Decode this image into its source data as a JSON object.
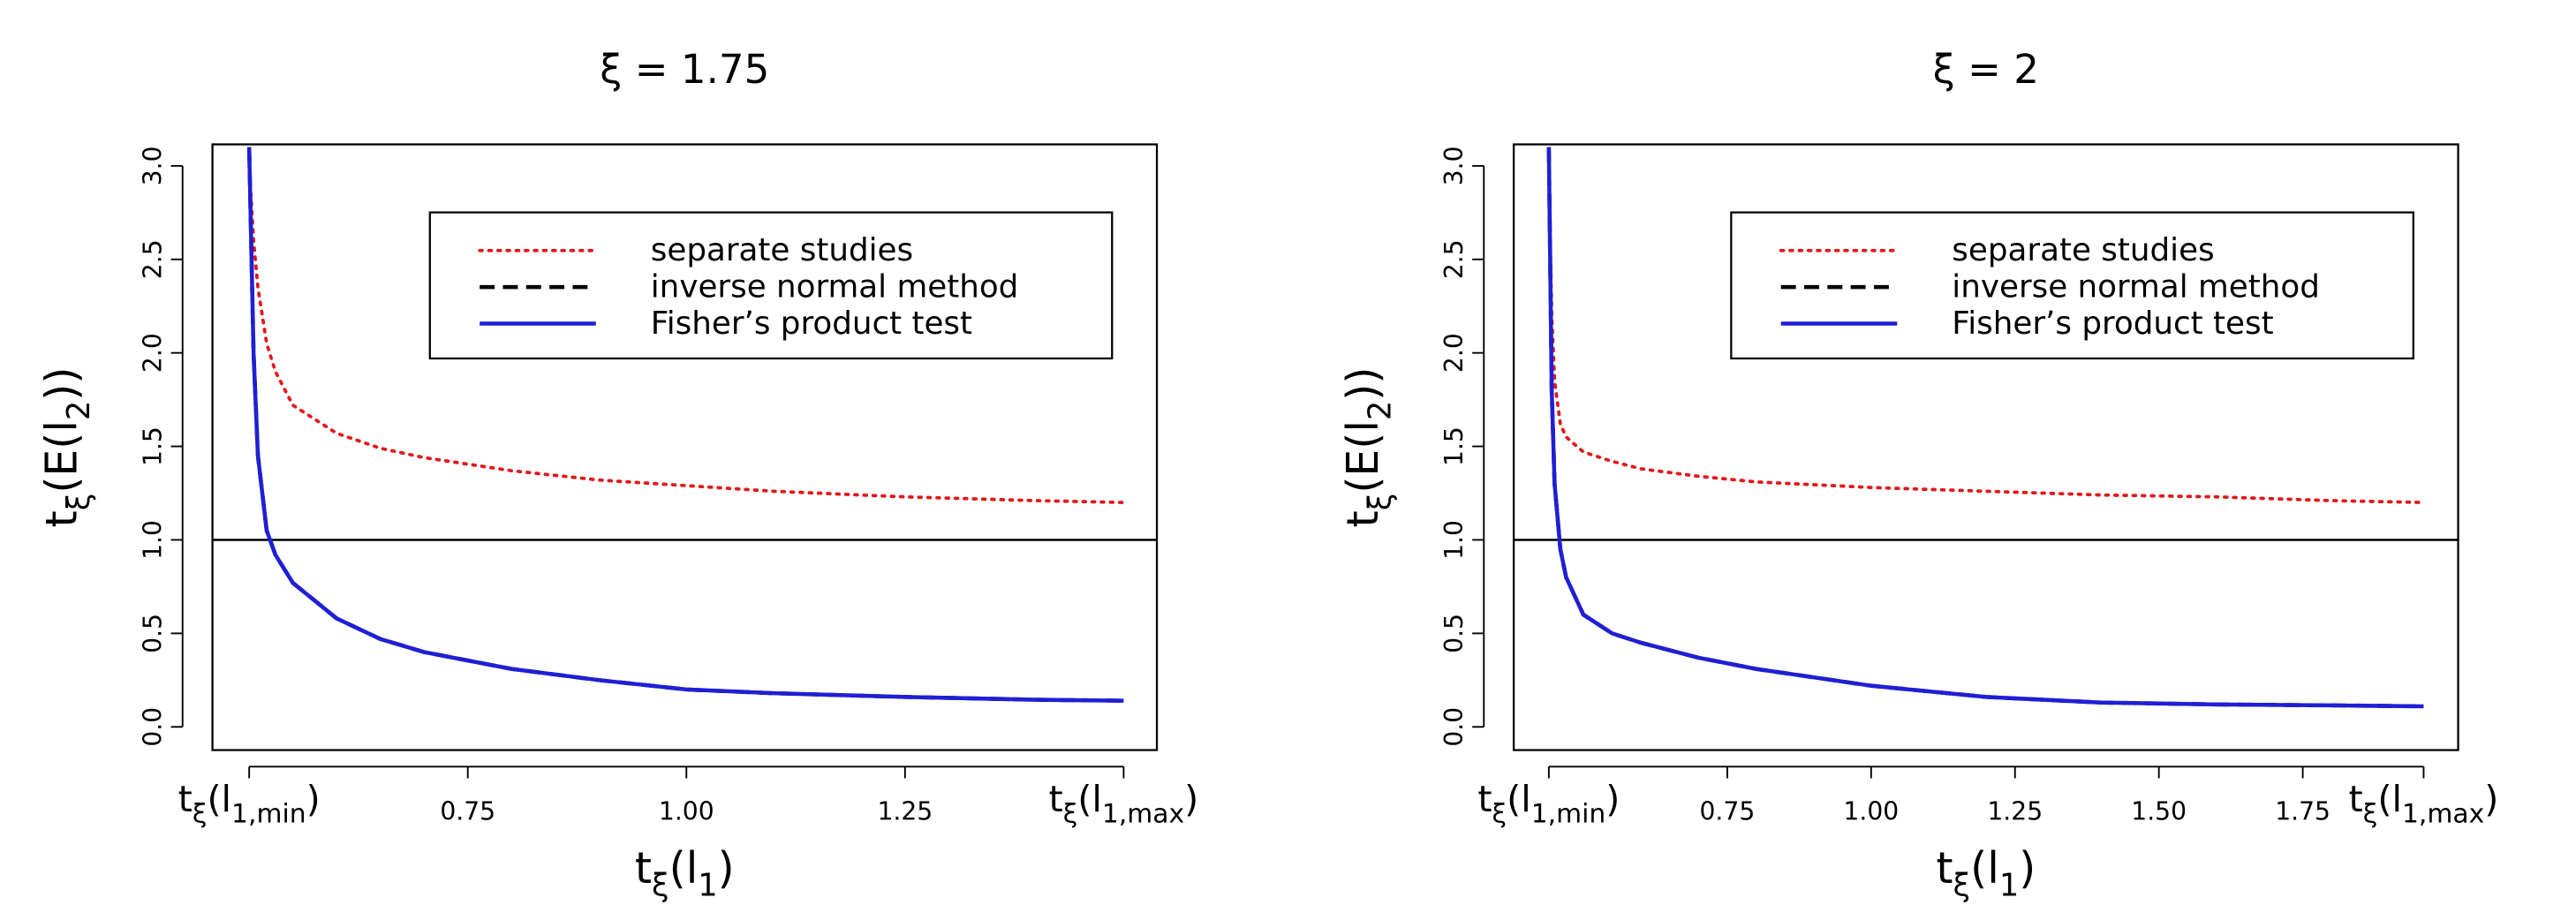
{
  "chart_data": [
    {
      "type": "line",
      "title": "ξ = 1.75",
      "xlabel": "tξ(l1)",
      "ylabel": "tξ(E(l2))",
      "x": [
        0.5,
        0.505,
        0.51,
        0.52,
        0.53,
        0.55,
        0.6,
        0.65,
        0.7,
        0.8,
        0.9,
        1.0,
        1.1,
        1.25,
        1.4,
        1.5
      ],
      "series": [
        {
          "name": "separate studies",
          "color": "#e0191c",
          "dash": "dotted",
          "values": [
            3.0,
            2.6,
            2.35,
            2.05,
            1.9,
            1.72,
            1.57,
            1.49,
            1.44,
            1.37,
            1.32,
            1.29,
            1.26,
            1.23,
            1.21,
            1.2
          ]
        },
        {
          "name": "inverse normal method",
          "color": "#000000",
          "dash": "dashed",
          "values": [
            3.1,
            2.0,
            1.45,
            1.05,
            0.92,
            0.77,
            0.58,
            0.47,
            0.4,
            0.31,
            0.25,
            0.2,
            0.18,
            0.16,
            0.145,
            0.14
          ]
        },
        {
          "name": "Fisher’s product test",
          "color": "#1f1fd6",
          "dash": "solid",
          "values": [
            3.1,
            2.0,
            1.45,
            1.05,
            0.92,
            0.77,
            0.58,
            0.47,
            0.4,
            0.31,
            0.25,
            0.2,
            0.18,
            0.16,
            0.145,
            0.14
          ]
        }
      ],
      "hline": 1,
      "xlim": [
        0.458,
        1.538
      ],
      "ylim": [
        -0.124,
        3.115
      ],
      "xticks": [
        {
          "value": 0.5,
          "label": "tξ(l1,min)"
        },
        0.75,
        {
          "value": 1.0,
          "label": "1.00"
        },
        1.25,
        {
          "value": 1.5,
          "label": "tξ(l1,max)"
        }
      ],
      "yticks": [
        {
          "value": 0,
          "label": "0.0"
        },
        0.5,
        {
          "value": 1,
          "label": "1.0"
        },
        1.5,
        {
          "value": 2,
          "label": "2.0"
        },
        2.5,
        {
          "value": 3,
          "label": "3.0"
        }
      ],
      "legend": "top-right"
    },
    {
      "type": "line",
      "title": "ξ = 2",
      "xlabel": "tξ(l1)",
      "ylabel": "tξ(E(l2))",
      "x": [
        0.44,
        0.445,
        0.45,
        0.46,
        0.47,
        0.5,
        0.55,
        0.6,
        0.7,
        0.8,
        1.0,
        1.2,
        1.4,
        1.6,
        1.8,
        1.96
      ],
      "series": [
        {
          "name": "separate studies",
          "color": "#e0191c",
          "dash": "dotted",
          "values": [
            3.0,
            2.2,
            1.85,
            1.62,
            1.55,
            1.47,
            1.42,
            1.38,
            1.34,
            1.31,
            1.28,
            1.26,
            1.24,
            1.23,
            1.21,
            1.2
          ]
        },
        {
          "name": "inverse normal method",
          "color": "#000000",
          "dash": "dashed",
          "values": [
            3.1,
            1.8,
            1.3,
            0.95,
            0.8,
            0.6,
            0.5,
            0.45,
            0.37,
            0.31,
            0.22,
            0.16,
            0.13,
            0.12,
            0.115,
            0.11
          ]
        },
        {
          "name": "Fisher’s product test",
          "color": "#1f1fd6",
          "dash": "solid",
          "values": [
            3.1,
            1.8,
            1.3,
            0.95,
            0.8,
            0.6,
            0.5,
            0.45,
            0.37,
            0.31,
            0.22,
            0.16,
            0.13,
            0.12,
            0.115,
            0.11
          ]
        }
      ],
      "hline": 1,
      "xlim": [
        0.379,
        2.02
      ],
      "ylim": [
        -0.124,
        3.115
      ],
      "xticks": [
        {
          "value": 0.44,
          "label": "tξ(l1,min)"
        },
        0.75,
        {
          "value": 1.0,
          "label": "1.00"
        },
        1.25,
        {
          "value": 1.5,
          "label": "1.50"
        },
        1.75,
        {
          "value": 1.96,
          "label": "tξ(l1,max)"
        }
      ],
      "yticks": [
        {
          "value": 0,
          "label": "0.0"
        },
        0.5,
        {
          "value": 1,
          "label": "1.0"
        },
        1.5,
        {
          "value": 2,
          "label": "2.0"
        },
        2.5,
        {
          "value": 3,
          "label": "3.0"
        }
      ],
      "legend": "top-right"
    }
  ]
}
